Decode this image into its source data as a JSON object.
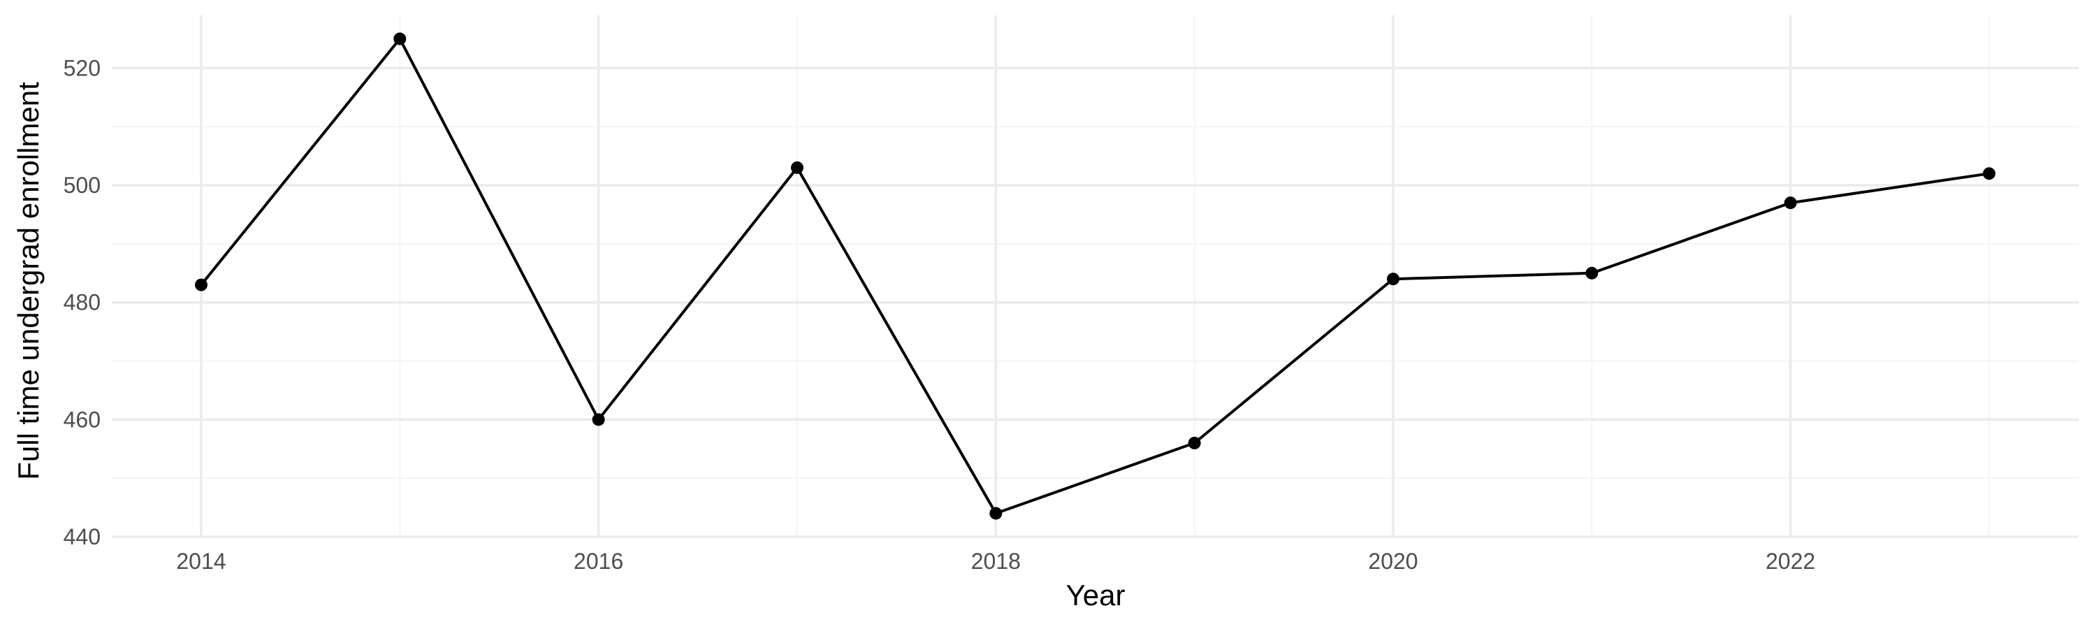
{
  "chart_data": {
    "type": "line",
    "title": "",
    "xlabel": "Year",
    "ylabel": "Full time undergrad enrollment",
    "x": [
      2014,
      2015,
      2016,
      2017,
      2018,
      2019,
      2020,
      2021,
      2022,
      2023
    ],
    "series": [
      {
        "values": [
          483,
          525,
          460,
          503,
          444,
          456,
          484,
          485,
          497,
          502
        ],
        "color": "#000000"
      }
    ],
    "xlim": [
      2013.55,
      2023.45
    ],
    "ylim": [
      440,
      529
    ],
    "x_ticks": [
      2014,
      2016,
      2018,
      2020,
      2022
    ],
    "x_tick_labels": [
      "2014",
      "2016",
      "2018",
      "2020",
      "2022"
    ],
    "y_ticks": [
      440,
      460,
      480,
      500,
      520
    ],
    "y_tick_labels": [
      "440",
      "460",
      "480",
      "500",
      "520"
    ],
    "grid": true,
    "legend": "none"
  }
}
